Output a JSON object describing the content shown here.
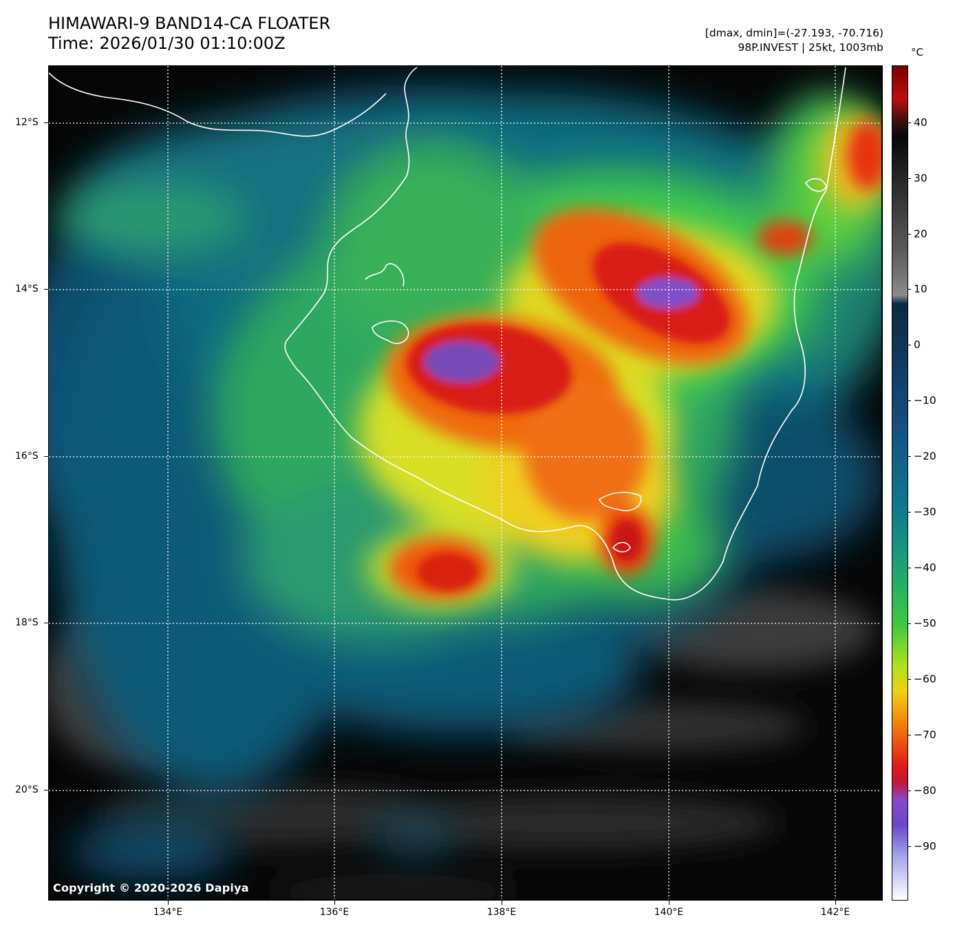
{
  "title": {
    "line1": "HIMAWARI-9 BAND14-CA FLOATER",
    "line2": "Time: 2026/01/30 01:10:00Z"
  },
  "info": {
    "line1": "[dmax, dmin]=(-27.193, -70.716)",
    "line2": "98P.INVEST | 25kt, 1003mb"
  },
  "copyright": "Copyright © 2020-2026 Dapiya",
  "map": {
    "lat_labels": [
      "12°S",
      "14°S",
      "16°S",
      "18°S",
      "20°S"
    ],
    "lon_labels": [
      "134°E",
      "136°E",
      "138°E",
      "140°E",
      "142°E"
    ],
    "gridlines": "dotted white",
    "coastline_color": "#ffffff"
  },
  "colorbar": {
    "unit": "°C",
    "labels": [
      "40",
      "30",
      "20",
      "10",
      "0",
      "−10",
      "−20",
      "−30",
      "−40",
      "−50",
      "−60",
      "−70",
      "−80",
      "−90"
    ]
  }
}
